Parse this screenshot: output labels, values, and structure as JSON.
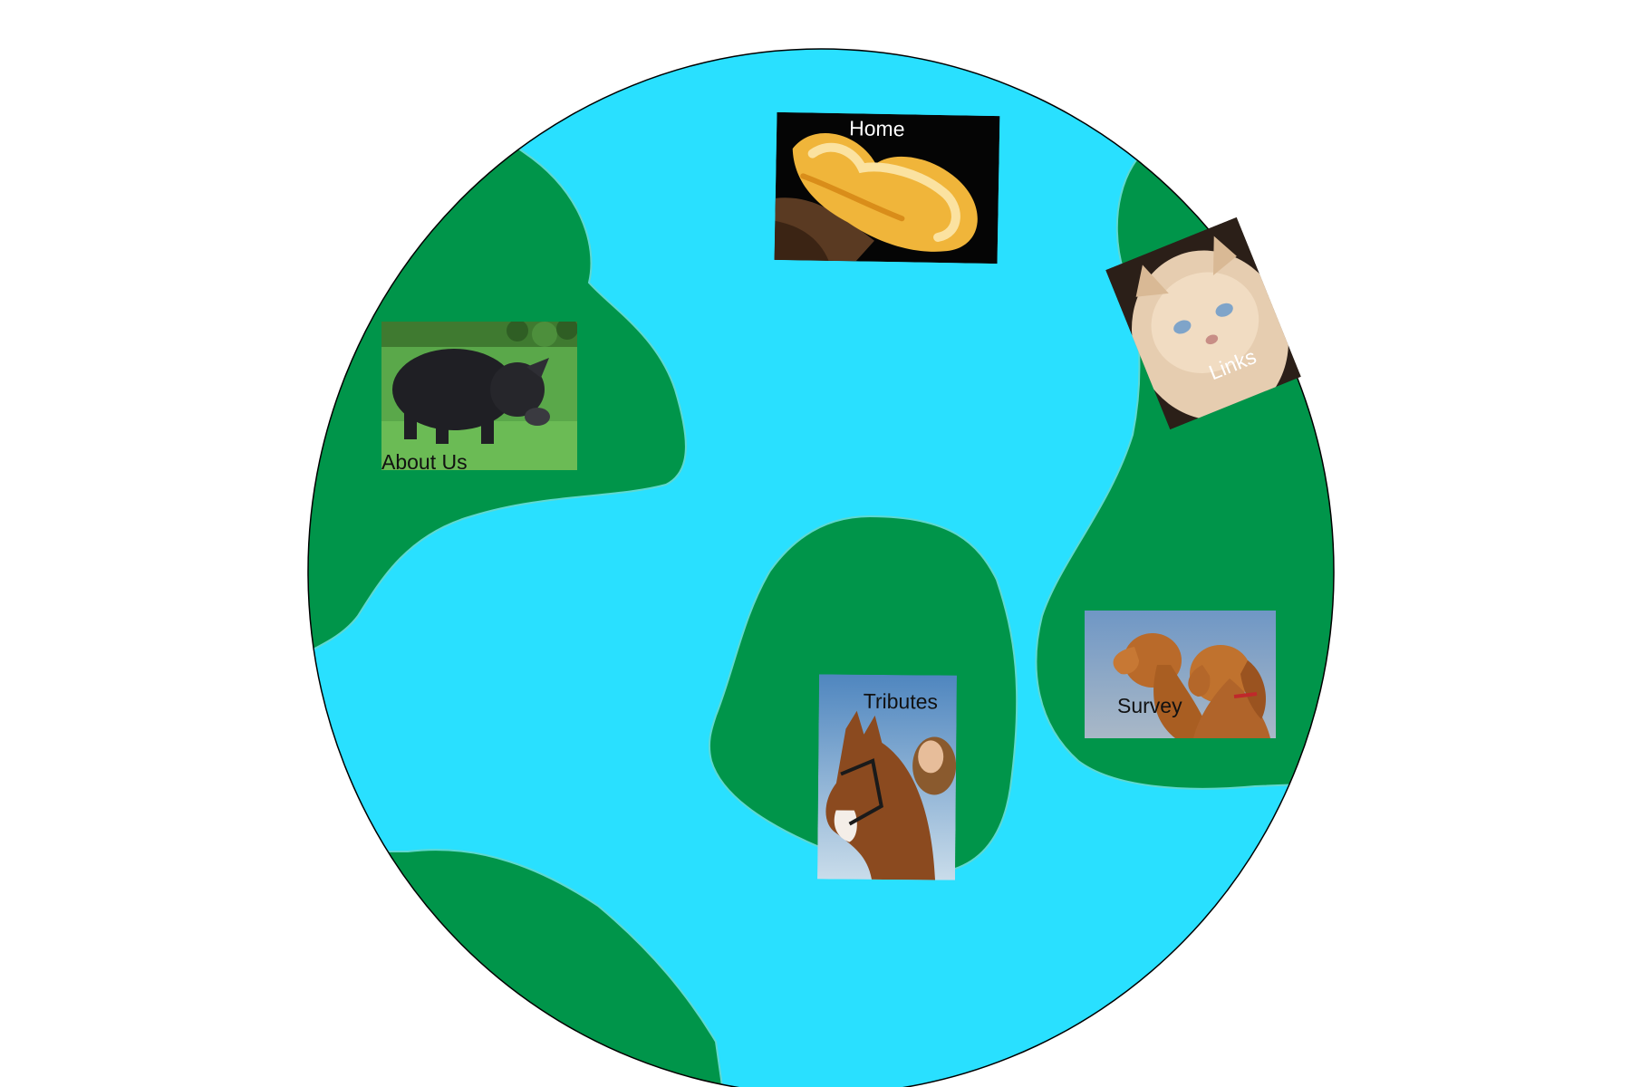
{
  "nav": {
    "home": {
      "label": "Home",
      "photo": "snake-photo"
    },
    "about": {
      "label": "About Us",
      "photo": "pig-photo"
    },
    "links": {
      "label": "Links",
      "photo": "cat-photo"
    },
    "tributes": {
      "label": "Tributes",
      "photo": "horse-photo"
    },
    "survey": {
      "label": "Survey",
      "photo": "dogs-photo"
    }
  },
  "colors": {
    "ocean": "#29e0ff",
    "land": "#00954a",
    "outline": "#000000",
    "background": "#ffffff"
  }
}
